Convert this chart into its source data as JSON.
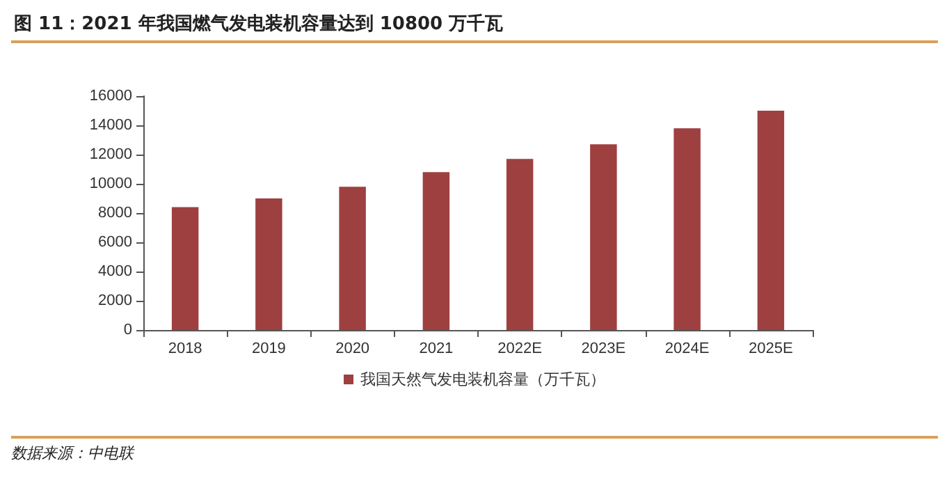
{
  "chart_data": {
    "type": "bar",
    "title": "图 11：2021 年我国燃气发电装机容量达到 10800 万千瓦",
    "categories": [
      "2018",
      "2019",
      "2020",
      "2021",
      "2022E",
      "2023E",
      "2024E",
      "2025E"
    ],
    "series": [
      {
        "name": "我国天然气发电装机容量（万千瓦）",
        "color": "#9e4040",
        "values": [
          8400,
          9000,
          9800,
          10800,
          11700,
          12700,
          13800,
          15000
        ]
      }
    ],
    "ylim": [
      0,
      16000
    ],
    "yticks": [
      0,
      2000,
      4000,
      6000,
      8000,
      10000,
      12000,
      14000,
      16000
    ],
    "grid": false,
    "legend": "bottom",
    "annotations": [
      "数据来源：中电联"
    ]
  }
}
